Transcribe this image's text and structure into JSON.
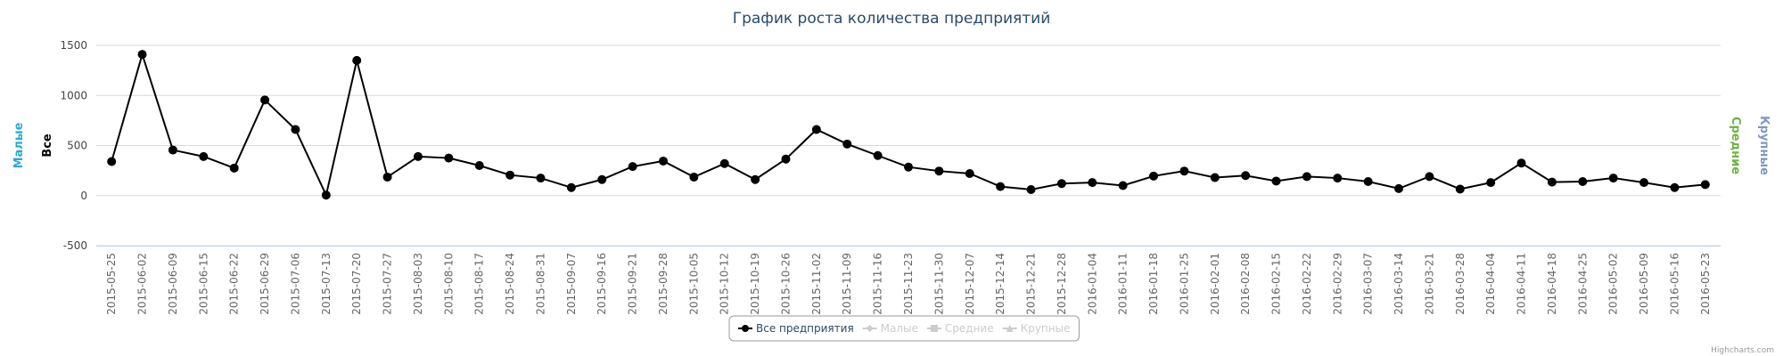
{
  "chart_data": {
    "type": "line",
    "title": "График роста количества предприятий",
    "categories": [
      "2015-05-25",
      "2015-06-02",
      "2015-06-09",
      "2015-06-15",
      "2015-06-22",
      "2015-06-29",
      "2015-07-06",
      "2015-07-13",
      "2015-07-20",
      "2015-07-27",
      "2015-08-03",
      "2015-08-10",
      "2015-08-17",
      "2015-08-24",
      "2015-08-31",
      "2015-09-07",
      "2015-09-16",
      "2015-09-21",
      "2015-09-28",
      "2015-10-05",
      "2015-10-12",
      "2015-10-19",
      "2015-10-26",
      "2015-11-02",
      "2015-11-09",
      "2015-11-16",
      "2015-11-23",
      "2015-11-30",
      "2015-12-07",
      "2015-12-14",
      "2015-12-21",
      "2015-12-28",
      "2016-01-04",
      "2016-01-11",
      "2016-01-18",
      "2016-01-25",
      "2016-02-01",
      "2016-02-08",
      "2016-02-15",
      "2016-02-22",
      "2016-02-29",
      "2016-03-07",
      "2016-03-14",
      "2016-03-21",
      "2016-03-28",
      "2016-04-04",
      "2016-04-11",
      "2016-04-18",
      "2016-04-25",
      "2016-05-02",
      "2016-05-09",
      "2016-05-16",
      "2016-05-23"
    ],
    "series": [
      {
        "name": "Все предприятия",
        "color": "#000000",
        "marker": "circle",
        "visible": true,
        "values": [
          340,
          1410,
          455,
          390,
          275,
          955,
          660,
          5,
          1350,
          185,
          390,
          375,
          300,
          205,
          175,
          80,
          160,
          290,
          345,
          185,
          320,
          160,
          365,
          660,
          515,
          400,
          285,
          245,
          220,
          90,
          60,
          120,
          130,
          100,
          195,
          245,
          180,
          200,
          145,
          190,
          175,
          140,
          70,
          190,
          65,
          130,
          325,
          135,
          140,
          175,
          130,
          80,
          110
        ]
      },
      {
        "name": "Малые",
        "color": "#29a8d8",
        "marker": "diamond",
        "visible": false
      },
      {
        "name": "Средние",
        "color": "#6cb33f",
        "marker": "square",
        "visible": false
      },
      {
        "name": "Крупные",
        "color": "#7e97c4",
        "marker": "triangle",
        "visible": false
      }
    ],
    "axis_titles": [
      {
        "text": "Малые",
        "color": "#29a8d8",
        "side": "left"
      },
      {
        "text": "Все",
        "color": "#000000",
        "side": "left"
      },
      {
        "text": "Средние",
        "color": "#6cb33f",
        "side": "right"
      },
      {
        "text": "Крупные",
        "color": "#7e97c4",
        "side": "right"
      }
    ],
    "ylim": [
      -500,
      1500
    ],
    "yticks": [
      -500,
      0,
      500,
      1000,
      1500
    ],
    "grid": true,
    "legend": "bottom",
    "credits": "Highcharts.com"
  }
}
